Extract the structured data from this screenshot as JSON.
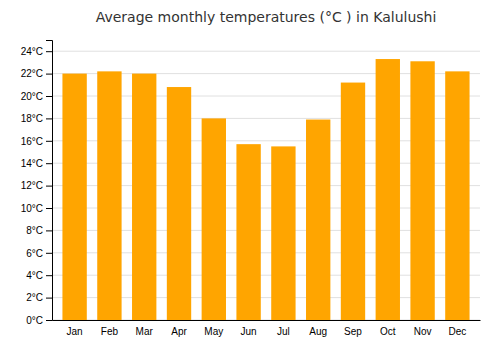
{
  "chart_data": {
    "type": "bar",
    "title": "Average monthly temperatures (°C ) in Kalulushi",
    "categories": [
      "Jan",
      "Feb",
      "Mar",
      "Apr",
      "May",
      "Jun",
      "Jul",
      "Aug",
      "Sep",
      "Oct",
      "Nov",
      "Dec"
    ],
    "values": [
      22,
      22.2,
      22,
      20.8,
      18,
      15.7,
      15.5,
      17.9,
      21.2,
      23.3,
      23.1,
      22.2
    ],
    "color": "#FFA500",
    "ylim": [
      0,
      25
    ],
    "yticks": [
      {
        "value": 0,
        "label": "0°C"
      },
      {
        "value": 2,
        "label": "2°C"
      },
      {
        "value": 4,
        "label": "4°C"
      },
      {
        "value": 6,
        "label": "6°C"
      },
      {
        "value": 8,
        "label": "8°C"
      },
      {
        "value": 10,
        "label": "10°C"
      },
      {
        "value": 12,
        "label": "12°C"
      },
      {
        "value": 14,
        "label": "14°C"
      },
      {
        "value": 16,
        "label": "16°C"
      },
      {
        "value": 18,
        "label": "18°C"
      },
      {
        "value": 20,
        "label": "20°C"
      },
      {
        "value": 22,
        "label": "22°C"
      },
      {
        "value": 24,
        "label": "24°C"
      }
    ],
    "grid": true
  }
}
